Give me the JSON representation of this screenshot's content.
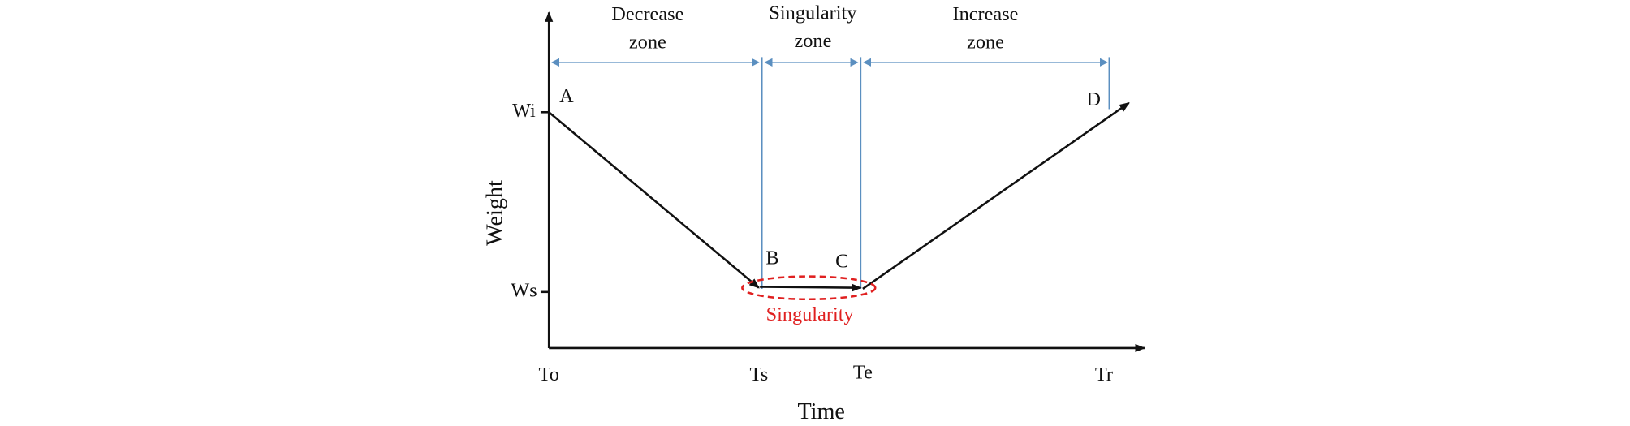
{
  "zones": [
    {
      "line1": "Decrease",
      "line2": "zone"
    },
    {
      "line1": "Singularity",
      "line2": "zone"
    },
    {
      "line1": "Increase",
      "line2": "zone"
    }
  ],
  "y_axis": {
    "label": "Weight",
    "ticks": [
      "Wi",
      "Ws"
    ]
  },
  "x_axis": {
    "label": "Time",
    "ticks": [
      "To",
      "Ts",
      "Te",
      "Tr"
    ]
  },
  "points": [
    "A",
    "B",
    "C",
    "D"
  ],
  "annotation": "Singularity"
}
